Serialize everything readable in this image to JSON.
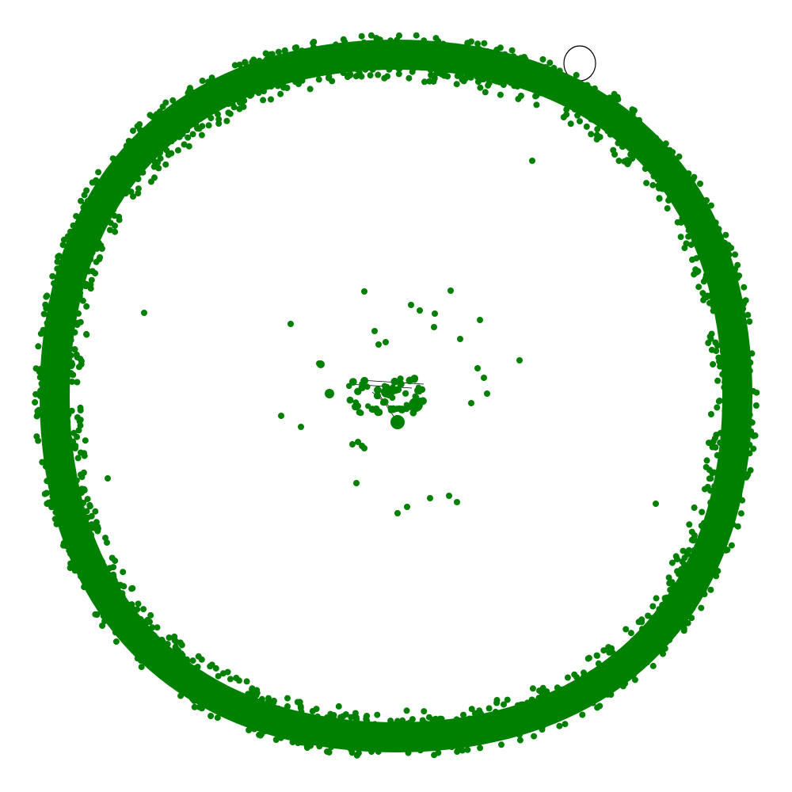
{
  "color": "#008000"
}
